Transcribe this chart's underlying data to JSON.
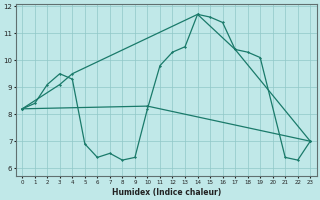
{
  "xlabel": "Humidex (Indice chaleur)",
  "bg_color": "#c0e8e8",
  "grid_color": "#a8d8d8",
  "line_color": "#1a7a6a",
  "xlim": [
    -0.5,
    23.5
  ],
  "ylim": [
    5.7,
    12.1
  ],
  "yticks": [
    6,
    7,
    8,
    9,
    10,
    11,
    12
  ],
  "xticks": [
    0,
    1,
    2,
    3,
    4,
    5,
    6,
    7,
    8,
    9,
    10,
    11,
    12,
    13,
    14,
    15,
    16,
    17,
    18,
    19,
    20,
    21,
    22,
    23
  ],
  "line1_x": [
    0,
    1,
    2,
    3,
    4,
    5,
    6,
    7,
    8,
    9,
    10,
    11,
    12,
    13,
    14,
    15,
    16,
    17,
    18,
    19,
    21,
    22,
    23
  ],
  "line1_y": [
    8.2,
    8.4,
    9.1,
    9.5,
    9.3,
    6.9,
    6.4,
    6.55,
    6.3,
    6.4,
    8.2,
    9.8,
    10.3,
    10.5,
    11.7,
    11.6,
    11.4,
    10.4,
    10.3,
    10.1,
    6.4,
    6.3,
    7.0
  ],
  "line2_x": [
    0,
    3,
    4,
    14,
    17,
    23
  ],
  "line2_y": [
    8.2,
    9.1,
    9.5,
    11.7,
    10.4,
    7.0
  ],
  "line3_x": [
    0,
    10,
    23
  ],
  "line3_y": [
    8.2,
    8.3,
    7.0
  ]
}
